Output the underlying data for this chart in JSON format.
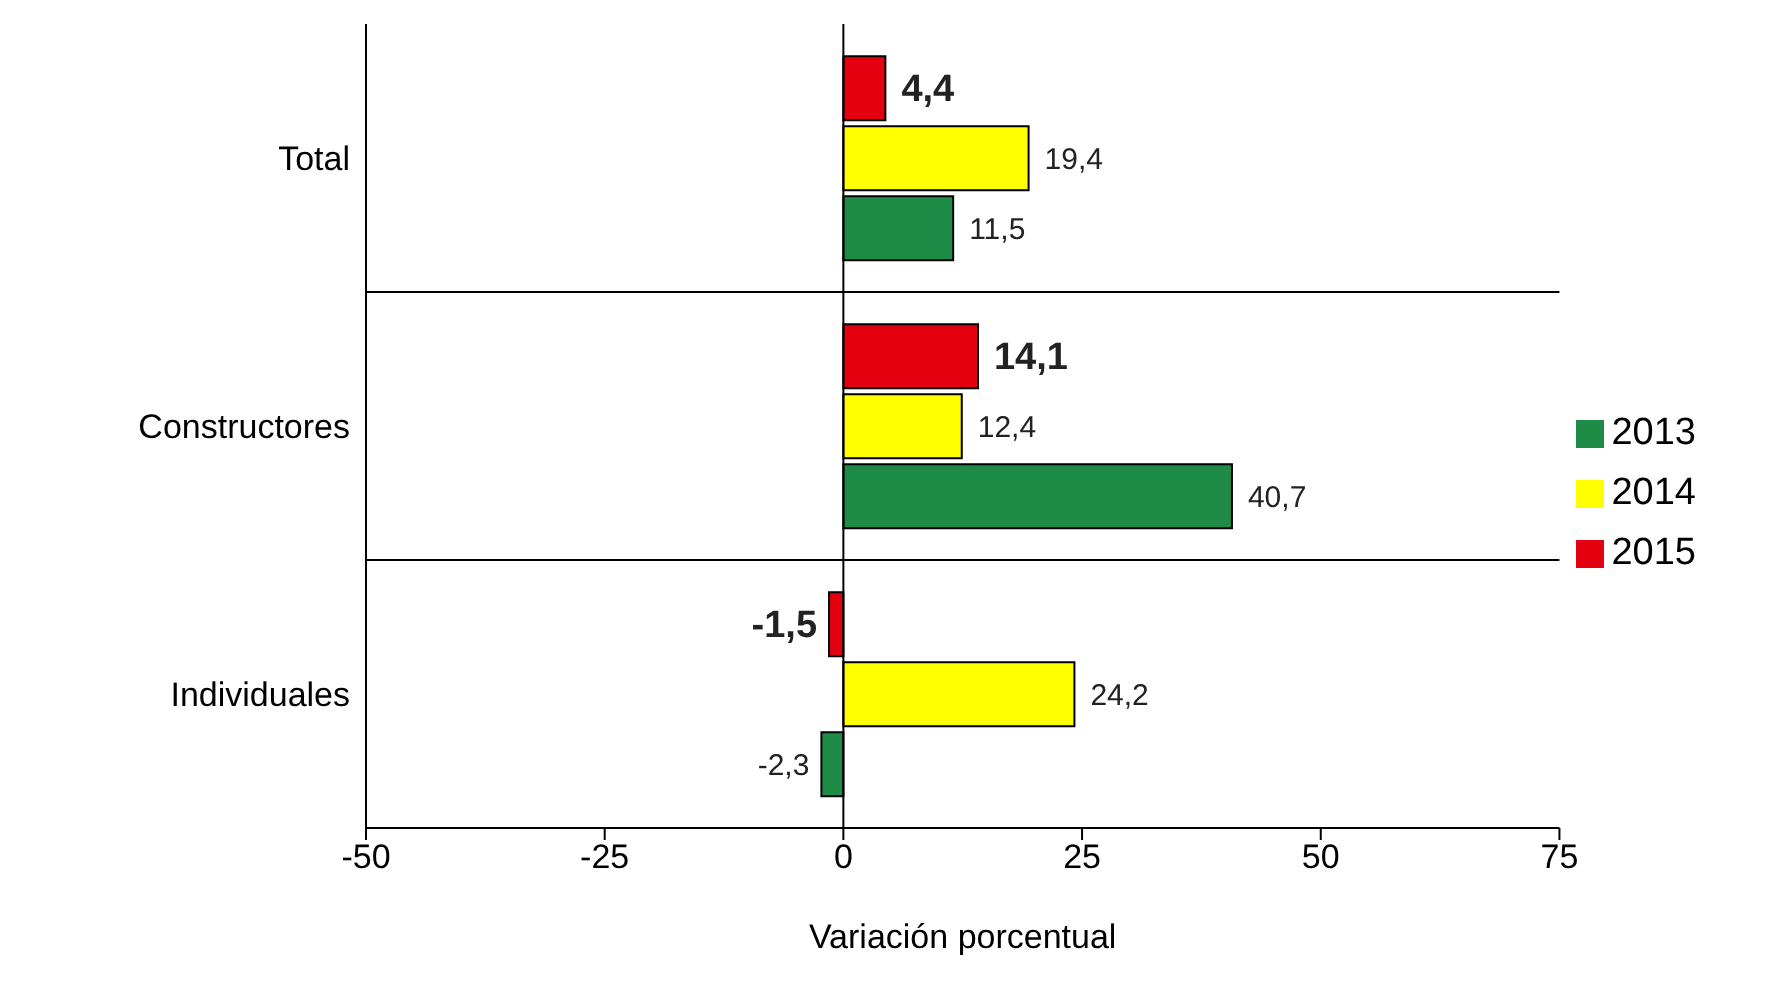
{
  "chart_data": {
    "type": "bar",
    "orientation": "horizontal",
    "xlabel": "Variación porcentual",
    "categories": [
      "Total",
      "Constructores",
      "Individuales"
    ],
    "series": [
      {
        "name": "2015",
        "color": "#e3000f",
        "values": [
          4.4,
          14.1,
          -1.5
        ],
        "value_labels": [
          "4,4",
          "14,1",
          "-1,5"
        ]
      },
      {
        "name": "2014",
        "color": "#ffff00",
        "values": [
          19.4,
          12.4,
          24.2
        ],
        "value_labels": [
          "19,4",
          "12,4",
          "24,2"
        ]
      },
      {
        "name": "2013",
        "color": "#1e8c46",
        "values": [
          11.5,
          40.7,
          -2.3
        ],
        "value_labels": [
          "11,5",
          "40,7",
          "-2,3"
        ]
      }
    ],
    "xlim": [
      -50,
      75
    ],
    "xticks": [
      -50,
      -25,
      0,
      25,
      50,
      75
    ],
    "grid": "y",
    "legend": "right",
    "ref_lines": [
      {
        "axis": "x",
        "value": 0,
        "color": "#000000"
      }
    ]
  }
}
